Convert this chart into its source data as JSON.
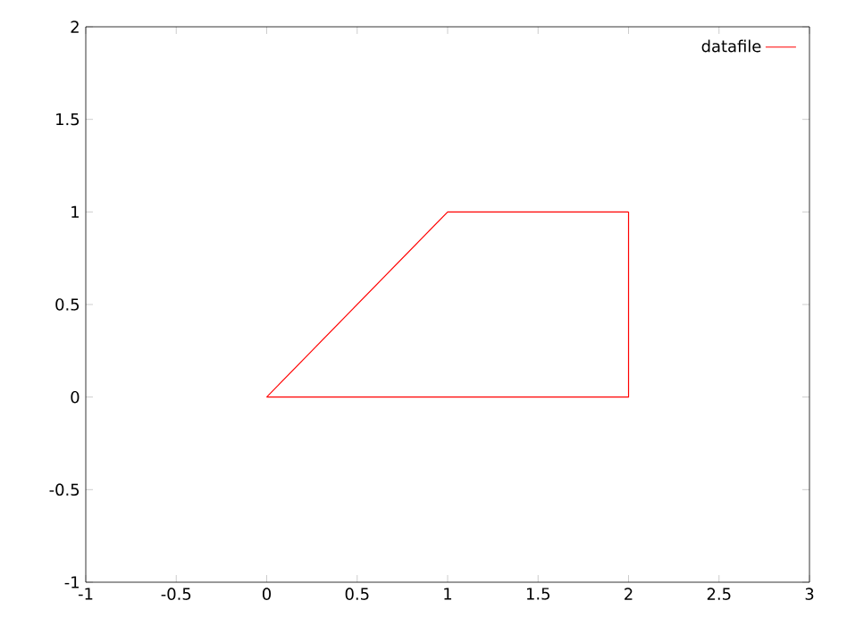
{
  "chart_data": {
    "type": "line",
    "series": [
      {
        "name": "datafile",
        "color": "#ff0000",
        "x": [
          0,
          1,
          2
        ],
        "values": [
          0,
          1,
          1
        ]
      },
      {
        "color": "#ff0000",
        "x": [
          0,
          2,
          2
        ],
        "values": [
          0,
          0,
          1
        ]
      }
    ],
    "xlim": [
      -1,
      3
    ],
    "ylim": [
      -1,
      2
    ],
    "xticks": [
      -1,
      -0.5,
      0,
      0.5,
      1,
      1.5,
      2,
      2.5,
      3
    ],
    "yticks": [
      -1,
      -0.5,
      0,
      0.5,
      1,
      1.5,
      2
    ],
    "grid": false,
    "legend": "top right",
    "marker": "none",
    "line_style": "solid"
  }
}
